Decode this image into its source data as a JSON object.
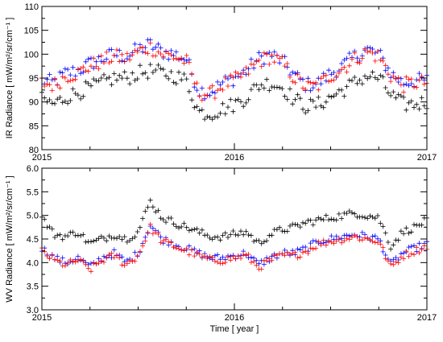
{
  "chart_data": [
    {
      "type": "scatter",
      "marker": "plus",
      "ylabel": "IR Radiance [ mW/m²/sr/cm⁻¹ ]",
      "xlabel": "",
      "ylim": [
        80,
        110
      ],
      "yticks": [
        "80",
        "85",
        "90",
        "95",
        "100",
        "105",
        "110"
      ],
      "xlim": [
        0,
        2
      ],
      "xticks": [
        {
          "value": 0,
          "label": "2015"
        },
        {
          "value": 1,
          "label": "2016"
        },
        {
          "value": 2,
          "label": "2017"
        }
      ],
      "series": [
        {
          "color": "#0000ff",
          "base": [
            94.5,
            94.0,
            96.0,
            96.5,
            98.0,
            99.0,
            100.0,
            99.5,
            101.0,
            102.0,
            100.5,
            100.0,
            99.0,
            92.5,
            92.0,
            94.0,
            95.0,
            96.5,
            99.0,
            100.0,
            98.5,
            95.5,
            93.5,
            94.0,
            96.0,
            97.5,
            99.5,
            101.0,
            100.0,
            96.0,
            94.0,
            94.5,
            94.5
          ],
          "x": [
            0,
            0.0625,
            0.125,
            0.1875,
            0.25,
            0.3125,
            0.375,
            0.4375,
            0.5,
            0.5625,
            0.625,
            0.6875,
            0.75,
            0.8125,
            0.875,
            0.9375,
            1.0,
            1.0625,
            1.125,
            1.1875,
            1.25,
            1.3125,
            1.375,
            1.4375,
            1.5,
            1.5625,
            1.625,
            1.6875,
            1.75,
            1.8125,
            1.875,
            1.9375,
            2.0
          ]
        },
        {
          "color": "#ff0000",
          "base": [
            94.0,
            93.5,
            95.5,
            96.0,
            97.5,
            98.5,
            99.5,
            99.0,
            100.5,
            101.5,
            100.0,
            99.5,
            98.5,
            92.0,
            91.5,
            93.5,
            94.5,
            96.0,
            98.5,
            99.5,
            98.0,
            95.0,
            93.0,
            93.5,
            95.5,
            97.0,
            99.0,
            100.5,
            99.5,
            95.5,
            93.5,
            94.0,
            94.0
          ],
          "x": [
            0,
            0.0625,
            0.125,
            0.1875,
            0.25,
            0.3125,
            0.375,
            0.4375,
            0.5,
            0.5625,
            0.625,
            0.6875,
            0.75,
            0.8125,
            0.875,
            0.9375,
            1.0,
            1.0625,
            1.125,
            1.1875,
            1.25,
            1.3125,
            1.375,
            1.4375,
            1.5,
            1.5625,
            1.625,
            1.6875,
            1.75,
            1.8125,
            1.875,
            1.9375,
            2.0
          ]
        },
        {
          "color": "#000000",
          "base": [
            90.5,
            89.5,
            91.0,
            92.0,
            93.0,
            94.0,
            95.0,
            95.0,
            96.0,
            96.5,
            96.0,
            95.5,
            94.5,
            88.0,
            87.5,
            88.5,
            89.5,
            91.0,
            93.5,
            94.0,
            93.0,
            90.5,
            89.0,
            89.5,
            91.0,
            92.5,
            94.0,
            95.5,
            95.0,
            91.5,
            89.5,
            89.5,
            90.0
          ],
          "x": [
            0,
            0.0625,
            0.125,
            0.1875,
            0.25,
            0.3125,
            0.375,
            0.4375,
            0.5,
            0.5625,
            0.625,
            0.6875,
            0.75,
            0.8125,
            0.875,
            0.9375,
            1.0,
            1.0625,
            1.125,
            1.1875,
            1.25,
            1.3125,
            1.375,
            1.4375,
            1.5,
            1.5625,
            1.625,
            1.6875,
            1.75,
            1.8125,
            1.875,
            1.9375,
            2.0
          ]
        }
      ]
    },
    {
      "type": "scatter",
      "marker": "plus",
      "ylabel": "WV Radiance [ mW/m²/sr/cm⁻¹ ]",
      "xlabel": "Time [ year ]",
      "ylim": [
        3.0,
        6.0
      ],
      "yticks": [
        "3.0",
        "3.5",
        "4.0",
        "4.5",
        "5.0",
        "5.5",
        "6.0"
      ],
      "xlim": [
        0,
        2
      ],
      "xticks": [
        {
          "value": 0,
          "label": "2015"
        },
        {
          "value": 1,
          "label": "2016"
        },
        {
          "value": 2,
          "label": "2017"
        }
      ],
      "series": [
        {
          "color": "#0000ff",
          "base": [
            4.3,
            4.1,
            4.0,
            4.1,
            3.9,
            4.1,
            4.2,
            4.0,
            4.2,
            4.8,
            4.5,
            4.4,
            4.3,
            4.2,
            4.1,
            4.1,
            4.15,
            4.2,
            3.95,
            4.1,
            4.2,
            4.2,
            4.3,
            4.45,
            4.5,
            4.55,
            4.6,
            4.55,
            4.5,
            3.95,
            4.2,
            4.3,
            4.4
          ],
          "x": [
            0,
            0.0625,
            0.125,
            0.1875,
            0.25,
            0.3125,
            0.375,
            0.4375,
            0.5,
            0.5625,
            0.625,
            0.6875,
            0.75,
            0.8125,
            0.875,
            0.9375,
            1.0,
            1.0625,
            1.125,
            1.1875,
            1.25,
            1.3125,
            1.375,
            1.4375,
            1.5,
            1.5625,
            1.625,
            1.6875,
            1.75,
            1.8125,
            1.875,
            1.9375,
            2.0
          ]
        },
        {
          "color": "#ff0000",
          "base": [
            4.25,
            4.05,
            3.95,
            4.05,
            3.85,
            4.05,
            4.15,
            3.95,
            4.15,
            4.75,
            4.45,
            4.35,
            4.25,
            4.15,
            4.05,
            4.05,
            4.1,
            4.15,
            3.9,
            4.05,
            4.15,
            4.15,
            4.25,
            4.4,
            4.45,
            4.5,
            4.55,
            4.5,
            4.45,
            3.9,
            4.15,
            4.25,
            4.35
          ],
          "x": [
            0,
            0.0625,
            0.125,
            0.1875,
            0.25,
            0.3125,
            0.375,
            0.4375,
            0.5,
            0.5625,
            0.625,
            0.6875,
            0.75,
            0.8125,
            0.875,
            0.9375,
            1.0,
            1.0625,
            1.125,
            1.1875,
            1.25,
            1.3125,
            1.375,
            1.4375,
            1.5,
            1.5625,
            1.625,
            1.6875,
            1.75,
            1.8125,
            1.875,
            1.9375,
            2.0
          ]
        },
        {
          "color": "#000000",
          "base": [
            4.95,
            4.6,
            4.55,
            4.65,
            4.4,
            4.5,
            4.6,
            4.5,
            4.65,
            5.3,
            4.95,
            4.85,
            4.75,
            4.65,
            4.55,
            4.55,
            4.6,
            4.65,
            4.4,
            4.6,
            4.7,
            4.75,
            4.85,
            4.9,
            4.95,
            5.0,
            5.05,
            5.0,
            4.95,
            4.35,
            4.65,
            4.75,
            4.9
          ],
          "x": [
            0,
            0.0625,
            0.125,
            0.1875,
            0.25,
            0.3125,
            0.375,
            0.4375,
            0.5,
            0.5625,
            0.625,
            0.6875,
            0.75,
            0.8125,
            0.875,
            0.9375,
            1.0,
            1.0625,
            1.125,
            1.1875,
            1.25,
            1.3125,
            1.375,
            1.4375,
            1.5,
            1.5625,
            1.625,
            1.6875,
            1.75,
            1.8125,
            1.875,
            1.9375,
            2.0
          ]
        }
      ]
    }
  ]
}
